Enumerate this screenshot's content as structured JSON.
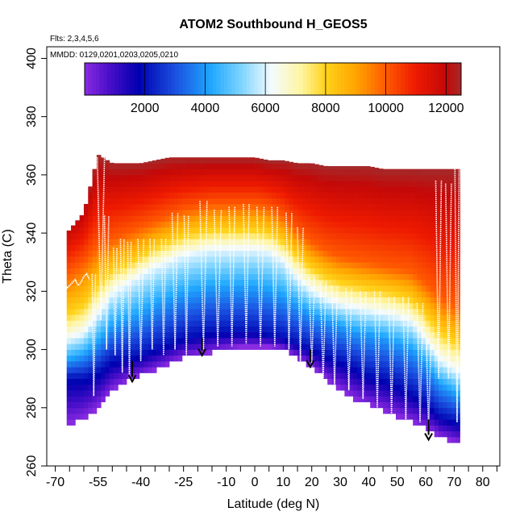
{
  "chart_data": {
    "type": "heatmap",
    "title": "ATOM2 Southbound H_GEOS5",
    "flights_label": "Flts: 2,3,4,5,6",
    "dates_label": "MMDD: 0129,0201,0203,0205,0210",
    "xlabel": "Latitude (deg N)",
    "ylabel": "Theta (C)",
    "xlim": [
      -73,
      86
    ],
    "ylim": [
      260,
      404
    ],
    "xticks": [
      -70,
      -55,
      -40,
      -25,
      -10,
      0,
      10,
      20,
      30,
      40,
      50,
      60,
      70,
      80
    ],
    "xtick_labels": [
      "-70",
      "-55",
      "-40",
      "-25",
      "-10",
      "0",
      "10",
      "20",
      "30",
      "40",
      "50",
      "60",
      "70",
      "80"
    ],
    "xticks_minor": [
      -65,
      -60,
      -50,
      -45,
      -35,
      -30,
      -20,
      -15,
      -5,
      5,
      15,
      25,
      35,
      45,
      55,
      65,
      75,
      85
    ],
    "yticks": [
      260,
      280,
      300,
      320,
      340,
      360,
      380,
      400
    ],
    "ytick_labels": [
      "260",
      "280",
      "300",
      "320",
      "340",
      "360",
      "380",
      "400"
    ],
    "colorbar": {
      "range": [
        0,
        12500
      ],
      "ticks": [
        2000,
        4000,
        6000,
        8000,
        10000,
        12000
      ],
      "tick_labels": [
        "2000",
        "4000",
        "6000",
        "8000",
        "10000",
        "12000"
      ],
      "stops": [
        [
          0,
          "#8a2be2"
        ],
        [
          800,
          "#4b0fc8"
        ],
        [
          1800,
          "#0000b0"
        ],
        [
          3000,
          "#1a50e0"
        ],
        [
          4200,
          "#1fa8ff"
        ],
        [
          5200,
          "#7ed4ff"
        ],
        [
          6200,
          "#f4fbff"
        ],
        [
          7200,
          "#fff5a0"
        ],
        [
          8000,
          "#ffd21a"
        ],
        [
          9000,
          "#ffa500"
        ],
        [
          10000,
          "#ff5a00"
        ],
        [
          11000,
          "#ee1a00"
        ],
        [
          12000,
          "#c40808"
        ],
        [
          12500,
          "#a52a2a"
        ]
      ]
    },
    "field_surfaces": {
      "latitude": [
        -66,
        -60,
        -55,
        -50,
        -45,
        -40,
        -35,
        -30,
        -25,
        -20,
        -15,
        -10,
        -5,
        0,
        5,
        10,
        15,
        20,
        25,
        30,
        35,
        40,
        45,
        50,
        55,
        60,
        65,
        71
      ],
      "theta_bottom": [
        274,
        276,
        280,
        286,
        289,
        291,
        293,
        295,
        297,
        298,
        299,
        300,
        301,
        301,
        301,
        300,
        297,
        294,
        290,
        286,
        283,
        281,
        279,
        277,
        275,
        273,
        270,
        268
      ],
      "theta_top": [
        340,
        347,
        367,
        364,
        364,
        364,
        365,
        366,
        366,
        366,
        366,
        366,
        366,
        366,
        365,
        365,
        364,
        364,
        363,
        363,
        363,
        363,
        362,
        362,
        362,
        362,
        362,
        362
      ],
      "theta_h2000": [
        290,
        290,
        292,
        296,
        297,
        298,
        300,
        302,
        304,
        305,
        306,
        306,
        306,
        306,
        305,
        304,
        302,
        300,
        298,
        296,
        294,
        291,
        290,
        288,
        285,
        282,
        277,
        275
      ],
      "theta_h4000": [
        296,
        298,
        302,
        308,
        310,
        312,
        315,
        317,
        319,
        320,
        321,
        321,
        321,
        321,
        320,
        318,
        315,
        312,
        310,
        308,
        306,
        305,
        304,
        302,
        300,
        295,
        288,
        284
      ],
      "theta_h6000": [
        303,
        305,
        312,
        319,
        322,
        325,
        328,
        330,
        332,
        333,
        334,
        334,
        334,
        334,
        333,
        330,
        324,
        320,
        317,
        315,
        314,
        313,
        312,
        311,
        309,
        303,
        296,
        292
      ],
      "theta_h8000": [
        312,
        315,
        322,
        327,
        329,
        332,
        335,
        337,
        339,
        340,
        341,
        341,
        341,
        341,
        340,
        337,
        332,
        328,
        325,
        323,
        322,
        321,
        320,
        319,
        317,
        312,
        306,
        302
      ],
      "theta_h10000": [
        326,
        330,
        336,
        338,
        340,
        342,
        344,
        346,
        348,
        349,
        350,
        350,
        350,
        350,
        349,
        346,
        341,
        337,
        334,
        332,
        331,
        330,
        329,
        328,
        327,
        323,
        318,
        315
      ],
      "theta_h12500": [
        345,
        350,
        367,
        364,
        364,
        364,
        365,
        366,
        366,
        366,
        366,
        366,
        366,
        366,
        365,
        365,
        364,
        364,
        363,
        363,
        363,
        363,
        362,
        362,
        362,
        362,
        362,
        362
      ]
    },
    "flight_track": {
      "segments": [
        {
          "lat": [
            -69,
            -68.5,
            -68,
            -67.5
          ],
          "theta": [
            337,
            333,
            320,
            312
          ]
        },
        {
          "lat": [
            -67,
            -66,
            -65,
            -64,
            -63,
            -62,
            -61,
            -60,
            -59,
            -58
          ],
          "theta": [
            324,
            321,
            322,
            323,
            324,
            322,
            323,
            325,
            326,
            324
          ]
        },
        {
          "lat": [
            -67.2,
            -67,
            -66.8
          ],
          "theta": [
            293,
            285,
            276
          ]
        }
      ],
      "profiles": [
        {
          "lat": -56.5,
          "bottom": 284,
          "top": 326,
          "width": 1.2
        },
        {
          "lat": -54,
          "bottom": 310,
          "top": 366,
          "width": 2.5
        },
        {
          "lat": -52,
          "bottom": 300,
          "top": 346,
          "width": 1.5
        },
        {
          "lat": -49,
          "bottom": 298,
          "top": 335,
          "width": 1.2
        },
        {
          "lat": -46.5,
          "bottom": 292,
          "top": 338,
          "width": 1.2
        },
        {
          "lat": -44,
          "bottom": 289,
          "top": 337,
          "width": 1.2
        },
        {
          "lat": -40,
          "bottom": 296,
          "top": 338,
          "width": 2
        },
        {
          "lat": -36,
          "bottom": 300,
          "top": 338,
          "width": 1.5
        },
        {
          "lat": -32,
          "bottom": 298,
          "top": 338,
          "width": 1.5
        },
        {
          "lat": -28,
          "bottom": 300,
          "top": 347,
          "width": 2
        },
        {
          "lat": -24,
          "bottom": 298,
          "top": 346,
          "width": 1.5
        },
        {
          "lat": -18,
          "bottom": 300,
          "top": 351,
          "width": 2.5
        },
        {
          "lat": -13,
          "bottom": 301,
          "top": 348,
          "width": 2.5
        },
        {
          "lat": -8,
          "bottom": 301,
          "top": 349,
          "width": 2
        },
        {
          "lat": -3,
          "bottom": 302,
          "top": 350,
          "width": 2
        },
        {
          "lat": 2,
          "bottom": 301,
          "top": 349,
          "width": 2.5
        },
        {
          "lat": 7,
          "bottom": 301,
          "top": 349,
          "width": 2
        },
        {
          "lat": 12,
          "bottom": 300,
          "top": 347,
          "width": 2
        },
        {
          "lat": 16,
          "bottom": 296,
          "top": 342,
          "width": 2
        },
        {
          "lat": 20,
          "bottom": 294,
          "top": 325,
          "width": 2
        },
        {
          "lat": 24,
          "bottom": 290,
          "top": 323,
          "width": 2
        },
        {
          "lat": 28,
          "bottom": 288,
          "top": 322,
          "width": 2
        },
        {
          "lat": 33,
          "bottom": 286,
          "top": 321,
          "width": 2
        },
        {
          "lat": 38,
          "bottom": 283,
          "top": 320,
          "width": 2
        },
        {
          "lat": 43,
          "bottom": 280,
          "top": 320,
          "width": 2
        },
        {
          "lat": 48,
          "bottom": 278,
          "top": 318,
          "width": 2
        },
        {
          "lat": 53,
          "bottom": 276,
          "top": 318,
          "width": 2
        },
        {
          "lat": 58,
          "bottom": 275,
          "top": 316,
          "width": 2
        },
        {
          "lat": 61,
          "bottom": 272,
          "top": 302,
          "width": 1.5
        },
        {
          "lat": 64.5,
          "bottom": 290,
          "top": 358,
          "width": 2
        },
        {
          "lat": 68,
          "bottom": 290,
          "top": 357,
          "width": 2
        },
        {
          "lat": 71,
          "bottom": 275,
          "top": 362,
          "width": 1.5
        }
      ]
    },
    "arrows": [
      {
        "lat": -43,
        "theta_start": 296,
        "theta_end": 289
      },
      {
        "lat": -18.5,
        "theta_start": 304,
        "theta_end": 298
      },
      {
        "lat": 19.5,
        "theta_start": 300,
        "theta_end": 294
      },
      {
        "lat": 61,
        "theta_start": 276,
        "theta_end": 269
      }
    ]
  }
}
